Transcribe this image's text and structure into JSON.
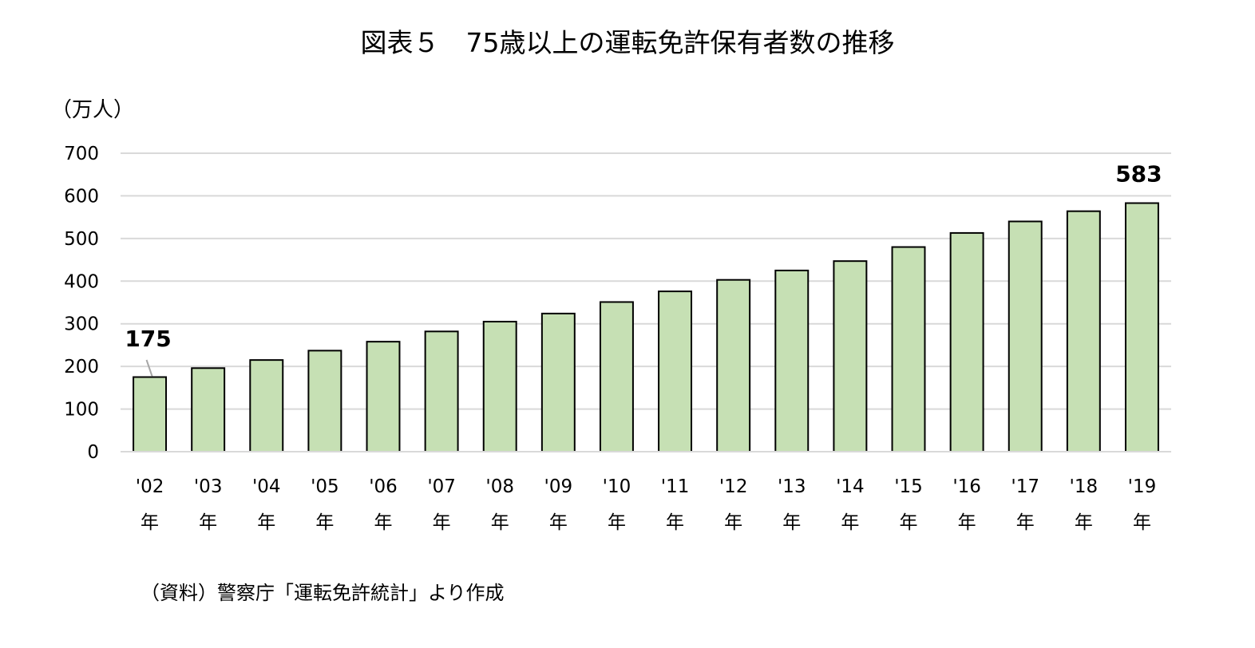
{
  "title": "図表５　75歳以上の運転免許保有者数の推移",
  "unit": "（万人）",
  "source": "（資料）警察庁「運転免許統計」より作成",
  "colors": {
    "bar_fill": "#c6e0b4",
    "bar_stroke": "#000000",
    "grid": "#d9d9d9"
  },
  "chart_data": {
    "type": "bar",
    "title": "図表５　75歳以上の運転免許保有者数の推移",
    "ylabel": "（万人）",
    "xlabel": "",
    "ylim": [
      0,
      700
    ],
    "yticks": [
      0,
      100,
      200,
      300,
      400,
      500,
      600,
      700
    ],
    "grid": true,
    "categories": [
      "'02",
      "'03",
      "'04",
      "'05",
      "'06",
      "'07",
      "'08",
      "'09",
      "'10",
      "'11",
      "'12",
      "'13",
      "'14",
      "'15",
      "'16",
      "'17",
      "'18",
      "'19"
    ],
    "category_suffix": "年",
    "values": [
      175,
      196,
      215,
      237,
      258,
      282,
      305,
      324,
      351,
      376,
      403,
      425,
      447,
      480,
      513,
      540,
      564,
      583
    ],
    "data_labels": [
      {
        "index": 0,
        "text": "175"
      },
      {
        "index": 17,
        "text": "583"
      }
    ]
  }
}
